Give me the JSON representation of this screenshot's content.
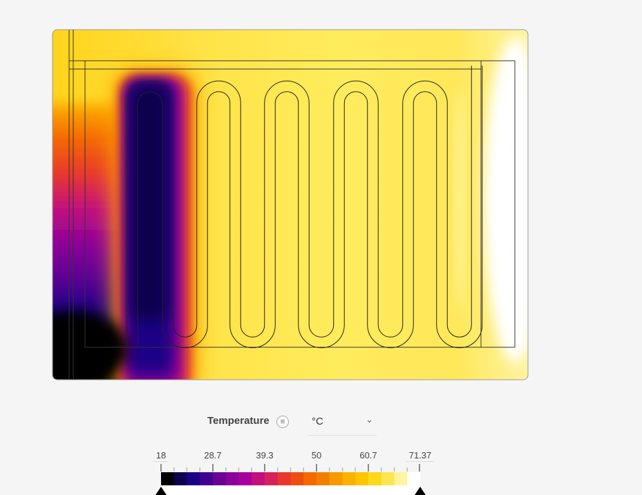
{
  "legend": {
    "title": "Temperature",
    "info_icon": "list-icon",
    "unit": "°C",
    "unit_dropdown_icon": "chevron-down-icon",
    "min": 18,
    "max": 71.37,
    "tick_labels": [
      "18",
      "28.7",
      "39.3",
      "50",
      "60.7",
      "71.37"
    ],
    "colors": [
      "#000000",
      "#0c0050",
      "#1c0085",
      "#420090",
      "#6a0096",
      "#8b009a",
      "#a8009a",
      "#c3107e",
      "#d6225c",
      "#e8382c",
      "#ef4e12",
      "#f56a00",
      "#f28000",
      "#f89900",
      "#fdb000",
      "#ffc500",
      "#ffd819",
      "#ffe54f",
      "#fff59c",
      "#ffffff"
    ]
  },
  "heatmap": {
    "colormap": "inferno-like banded",
    "cold_color": "#0c0050",
    "hot_color": "#ffffff",
    "background_color": "#ffe14a"
  }
}
